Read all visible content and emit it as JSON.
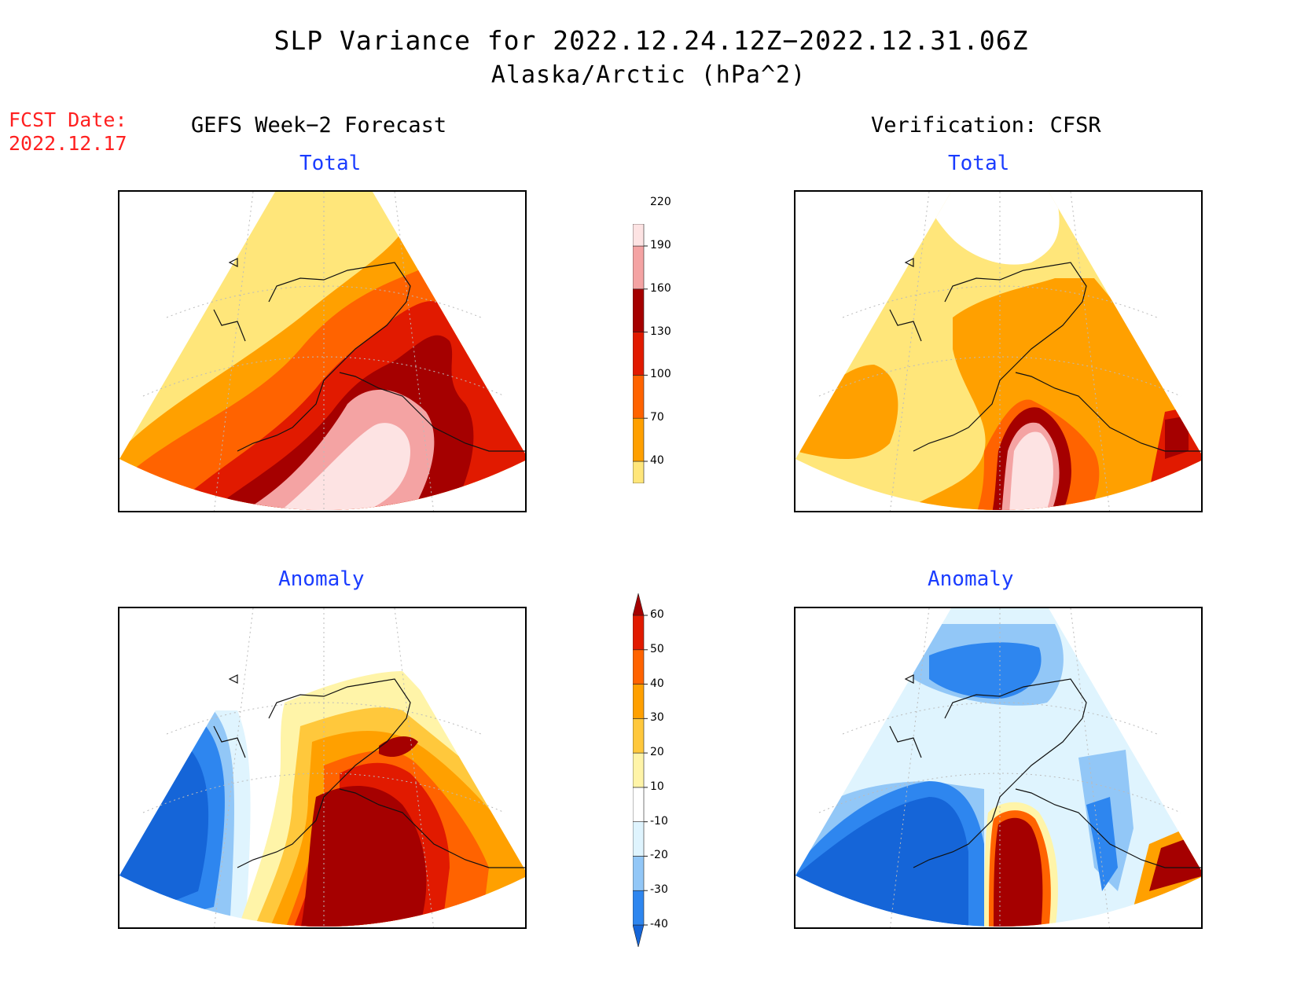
{
  "title": {
    "line1": "SLP Variance for 2022.12.24.12Z−2022.12.31.06Z",
    "line2": "Alaska/Arctic (hPa^2)"
  },
  "forecast_date": {
    "label": "FCST Date:",
    "value": "2022.12.17"
  },
  "columns": {
    "left": "GEFS Week−2 Forecast",
    "right": "Verification: CFSR"
  },
  "panels": {
    "forecast_total": {
      "title": "Total"
    },
    "forecast_anomaly": {
      "title": "Anomaly"
    },
    "verification_total": {
      "title": "Total"
    },
    "verification_anomaly": {
      "title": "Anomaly"
    }
  },
  "colorbars": {
    "total": {
      "levels": [
        "40",
        "70",
        "100",
        "130",
        "160",
        "190",
        "220"
      ],
      "colors": [
        "#ffe67a",
        "#ffa000",
        "#ff6300",
        "#e11a00",
        "#a50000",
        "#f4a3a3",
        "#fde3e3"
      ]
    },
    "anomaly": {
      "levels": [
        "-40",
        "-30",
        "-20",
        "-10",
        "10",
        "20",
        "30",
        "40",
        "50",
        "60"
      ],
      "colors": [
        "#1565d8",
        "#2e86ef",
        "#92c7f7",
        "#dff4fe",
        "#ffffff",
        "#fff4a8",
        "#ffc83c",
        "#ffa000",
        "#ff6300",
        "#e11a00",
        "#a50000"
      ]
    }
  }
}
